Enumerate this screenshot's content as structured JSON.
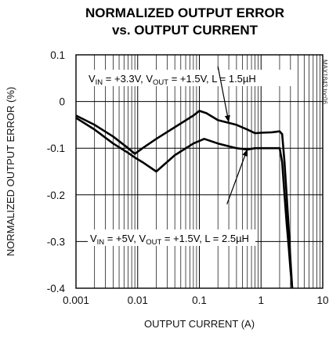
{
  "chart_data": {
    "type": "line",
    "title_lines": [
      "NORMALIZED OUTPUT ERROR",
      "vs. OUTPUT CURRENT"
    ],
    "xlabel": "OUTPUT CURRENT (A)",
    "ylabel": "NORMALIZED OUTPUT ERROR (%)",
    "x_scale": "log",
    "xlim": [
      0.001,
      10
    ],
    "ylim": [
      -0.4,
      0.1
    ],
    "x_ticks": [
      {
        "value": 0.001,
        "label": "0.001"
      },
      {
        "value": 0.01,
        "label": "0.01"
      },
      {
        "value": 0.1,
        "label": "0.1"
      },
      {
        "value": 1,
        "label": "1"
      },
      {
        "value": 10,
        "label": "10"
      }
    ],
    "y_ticks": [
      {
        "value": 0.1,
        "label": "0.1"
      },
      {
        "value": 0,
        "label": "0"
      },
      {
        "value": -0.1,
        "label": "-0.1"
      },
      {
        "value": -0.2,
        "label": "-0.2"
      },
      {
        "value": -0.3,
        "label": "-0.3"
      },
      {
        "value": -0.4,
        "label": "-0.4"
      }
    ],
    "grid": true,
    "code_text": "MAX1843 toc06",
    "series": [
      {
        "x": [
          0.001,
          0.002,
          0.004,
          0.007,
          0.009,
          0.012,
          0.02,
          0.04,
          0.08,
          0.1,
          0.13,
          0.2,
          0.4,
          0.6,
          0.8,
          1.0,
          1.5,
          2.0,
          2.2,
          2.4,
          2.6,
          2.8,
          3.0,
          3.2
        ],
        "y": [
          -0.03,
          -0.05,
          -0.075,
          -0.1,
          -0.112,
          -0.1,
          -0.08,
          -0.055,
          -0.03,
          -0.02,
          -0.025,
          -0.04,
          -0.05,
          -0.06,
          -0.068,
          -0.067,
          -0.066,
          -0.064,
          -0.07,
          -0.13,
          -0.2,
          -0.27,
          -0.34,
          -0.4
        ],
        "annotation": {
          "parts": [
            {
              "text": "V",
              "kind": "normal"
            },
            {
              "text": "IN",
              "kind": "sub"
            },
            {
              "text": " = +3.3V, V",
              "kind": "normal"
            },
            {
              "text": "OUT",
              "kind": "sub"
            },
            {
              "text": " = +1.5V, L = 1.5µH",
              "kind": "normal"
            }
          ],
          "pointer": {
            "from": [
              0.2,
              0.075
            ],
            "to": [
              0.3,
              -0.045
            ]
          }
        }
      },
      {
        "x": [
          0.001,
          0.002,
          0.004,
          0.007,
          0.009,
          0.012,
          0.02,
          0.04,
          0.08,
          0.12,
          0.2,
          0.4,
          0.6,
          0.8,
          1.0,
          1.5,
          2.0,
          2.2,
          2.4,
          2.6,
          2.8,
          3.0,
          3.2
        ],
        "y": [
          -0.035,
          -0.06,
          -0.09,
          -0.11,
          -0.12,
          -0.13,
          -0.15,
          -0.115,
          -0.09,
          -0.08,
          -0.09,
          -0.1,
          -0.103,
          -0.1,
          -0.1,
          -0.1,
          -0.1,
          -0.13,
          -0.2,
          -0.26,
          -0.31,
          -0.36,
          -0.4
        ],
        "annotation": {
          "parts": [
            {
              "text": "V",
              "kind": "normal"
            },
            {
              "text": "IN",
              "kind": "sub"
            },
            {
              "text": " = +5V, V",
              "kind": "normal"
            },
            {
              "text": "OUT",
              "kind": "sub"
            },
            {
              "text": " = +1.5V, L = 2.5µH",
              "kind": "normal"
            }
          ],
          "pointer": {
            "from": [
              0.28,
              -0.22
            ],
            "to": [
              0.6,
              -0.102
            ]
          }
        }
      }
    ]
  }
}
